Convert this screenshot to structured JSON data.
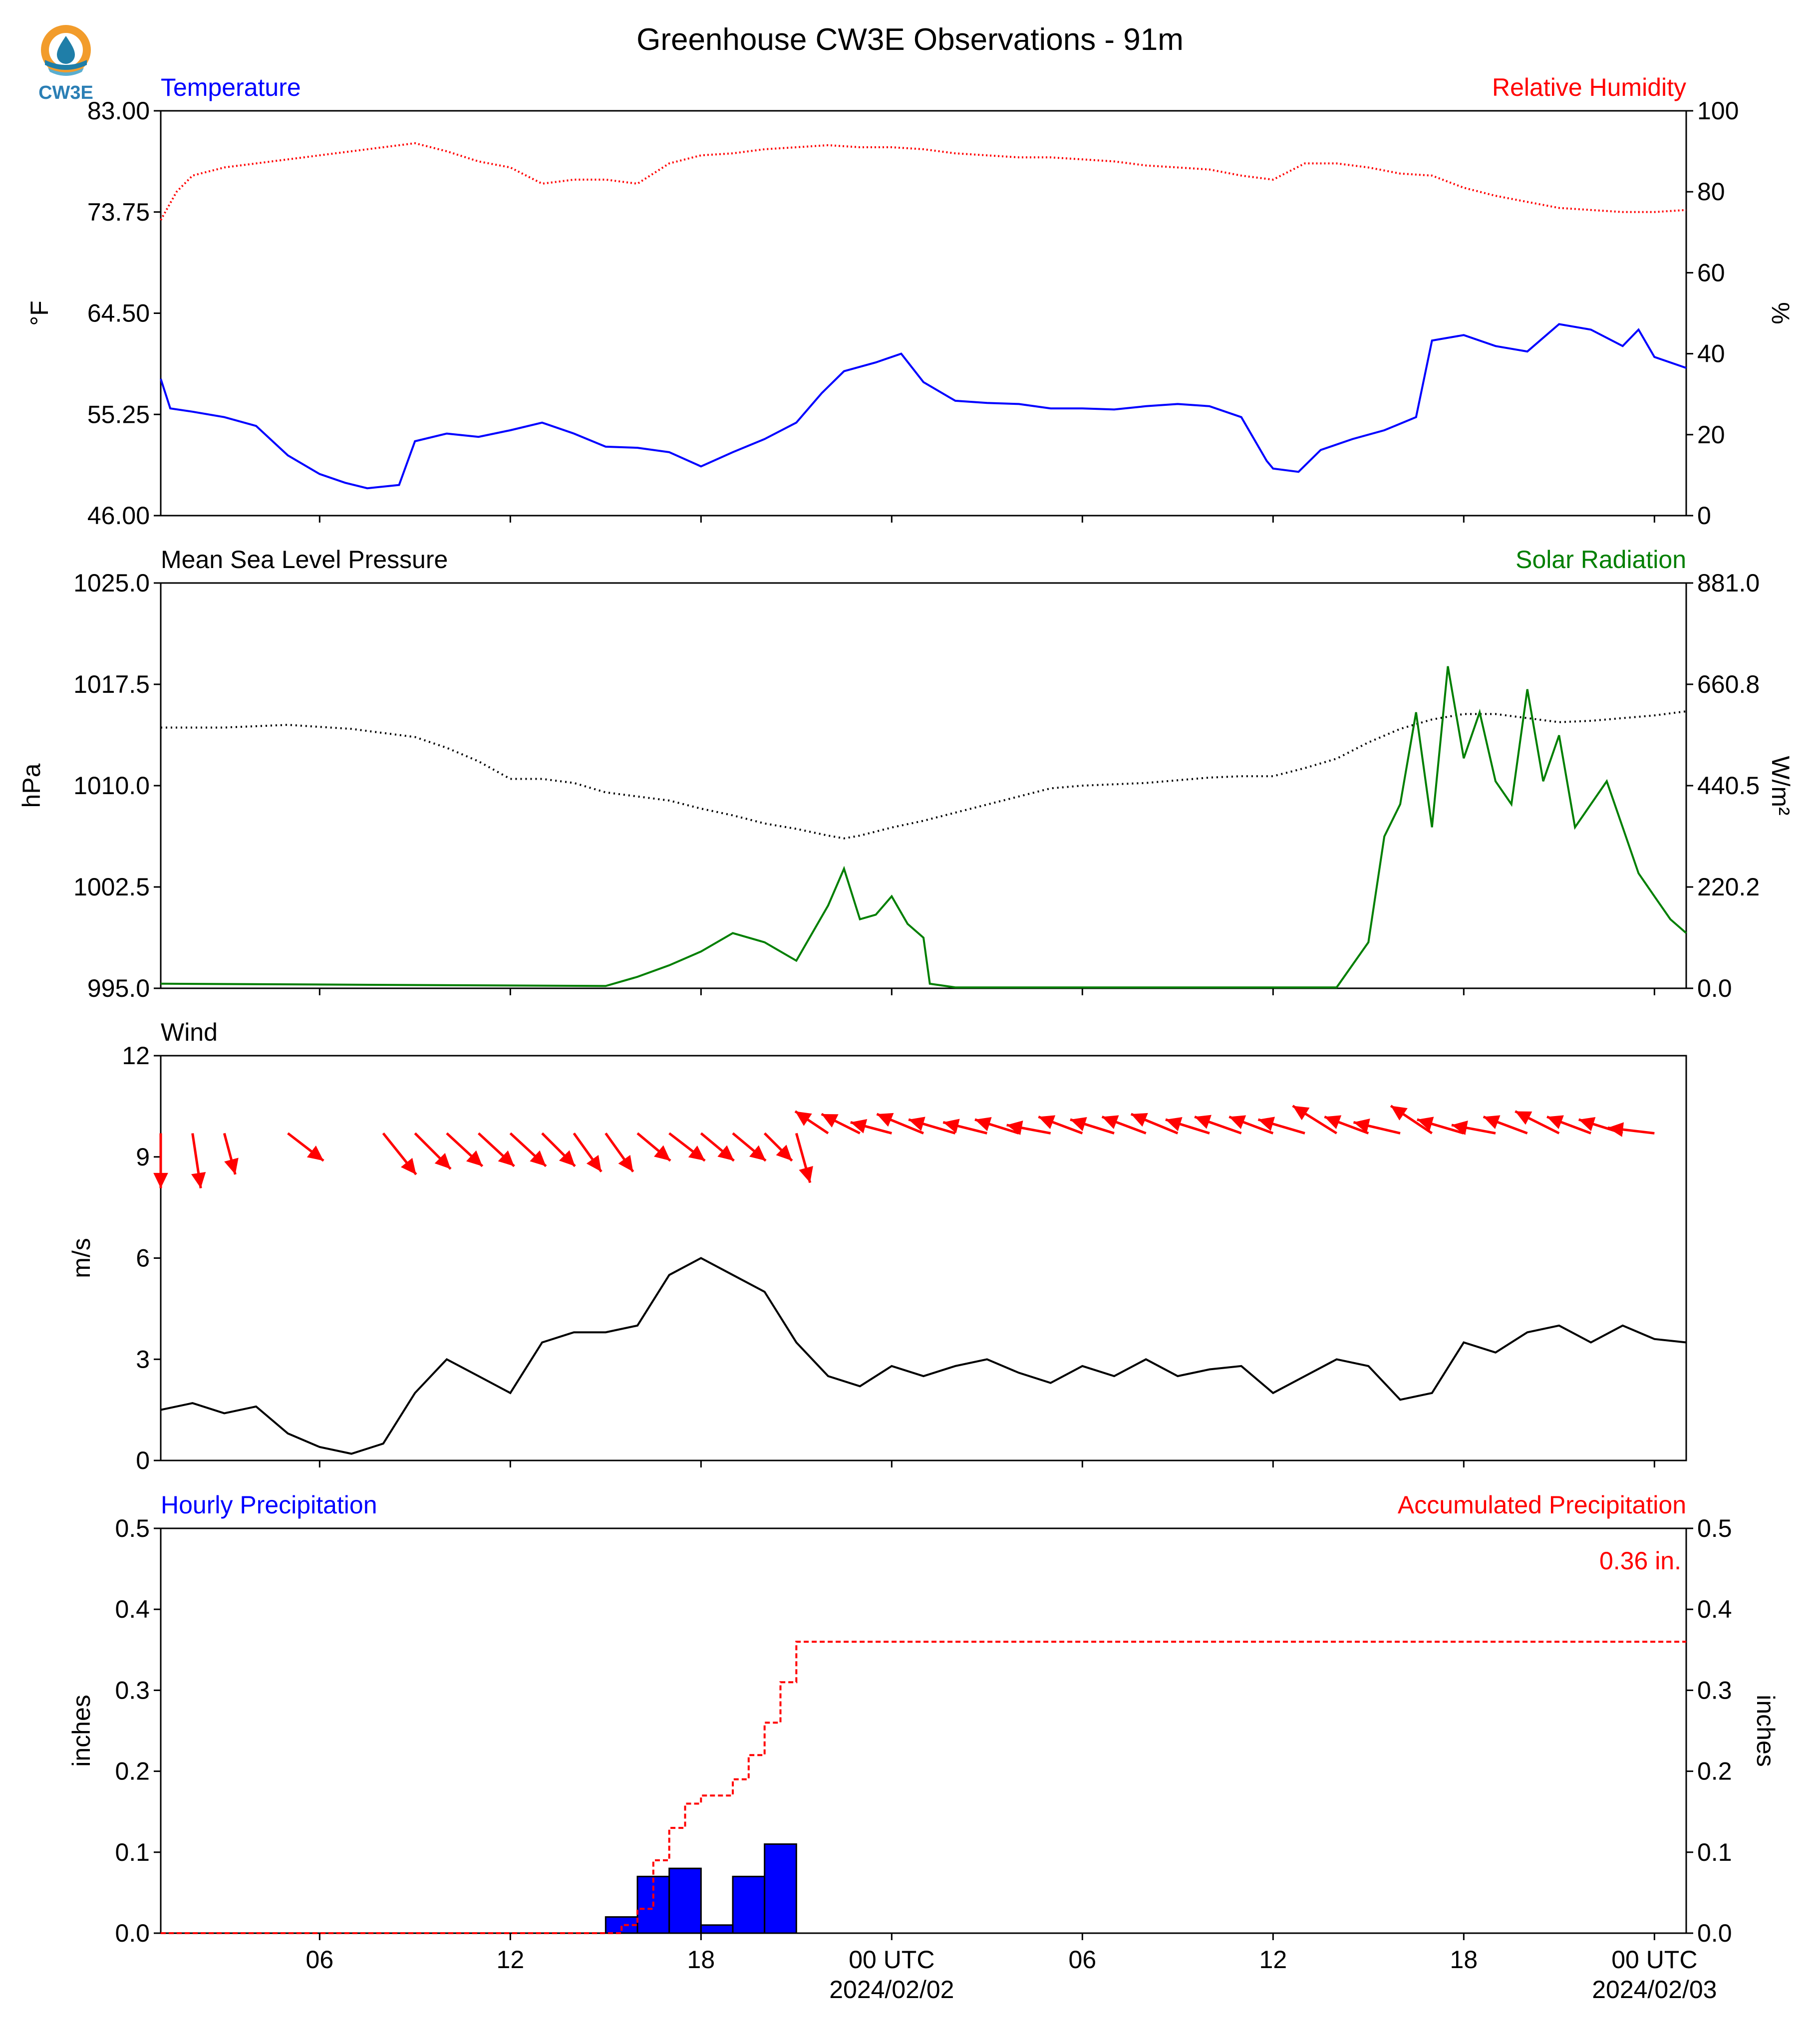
{
  "title": "Greenhouse CW3E Observations - 91m",
  "logo": {
    "text": "CW3E",
    "icon": "cw3e-drop-logo",
    "colors": {
      "ring": "#f29c2b",
      "drop": "#1f7ea8",
      "text": "#2b7fb5"
    }
  },
  "x_axis": {
    "tick_labels": [
      "06",
      "12",
      "18",
      "00 UTC",
      "06",
      "12",
      "18",
      "00 UTC"
    ],
    "date_labels": [
      "2024/02/02",
      "2024/02/03"
    ],
    "tick_hours": [
      6,
      12,
      18,
      24,
      30,
      36,
      42,
      48
    ],
    "range_hours": [
      1,
      49
    ]
  },
  "chart_data": [
    {
      "type": "line",
      "title": "",
      "left_label": "Temperature",
      "right_label": "Relative Humidity",
      "ylabel": "°F",
      "y2label": "%",
      "ylim": [
        46.0,
        83.0
      ],
      "y2lim": [
        0,
        100
      ],
      "yticks": [
        "46.00",
        "55.25",
        "64.50",
        "73.75",
        "83.00"
      ],
      "y2ticks": [
        "0",
        "20",
        "40",
        "60",
        "80",
        "100"
      ],
      "colors": {
        "left": "#0000ff",
        "right": "#ff0000"
      },
      "series": [
        {
          "name": "Temperature",
          "axis": "left",
          "color": "#0000ff",
          "x": [
            1,
            1.3,
            2,
            3,
            4,
            5,
            6,
            6.8,
            7.5,
            8.5,
            9,
            10,
            11,
            12,
            13,
            14,
            15,
            16,
            17,
            18,
            19,
            20,
            21,
            21.8,
            22.5,
            23.5,
            24.3,
            25,
            26,
            27,
            28,
            29,
            30,
            31,
            32,
            33,
            34,
            35,
            35.8,
            36,
            36.8,
            37.5,
            38.5,
            39.5,
            40.5,
            41,
            42,
            43,
            44,
            45,
            46,
            47,
            47.5,
            48,
            49
          ],
          "values": [
            58.5,
            55.8,
            55.5,
            55.0,
            54.2,
            51.5,
            49.8,
            49.0,
            48.5,
            48.8,
            52.8,
            53.5,
            53.2,
            53.8,
            54.5,
            53.5,
            52.3,
            52.2,
            51.8,
            50.5,
            51.8,
            53.0,
            54.5,
            57.2,
            59.2,
            60.0,
            60.8,
            58.2,
            56.5,
            56.3,
            56.2,
            55.8,
            55.8,
            55.7,
            56.0,
            56.2,
            56.0,
            55.0,
            51.0,
            50.3,
            50.0,
            52.0,
            53.0,
            53.8,
            55.0,
            62.0,
            62.5,
            61.5,
            61.0,
            63.5,
            63.0,
            61.5,
            63.0,
            60.5,
            59.5
          ]
        },
        {
          "name": "Relative Humidity",
          "axis": "right",
          "color": "#ff0000",
          "x": [
            1,
            1.5,
            2,
            3,
            4,
            5,
            6,
            7,
            8,
            9,
            10,
            11,
            12,
            13,
            14,
            15,
            16,
            17,
            18,
            19,
            20,
            21,
            22,
            23,
            24,
            25,
            26,
            27,
            28,
            29,
            30,
            31,
            32,
            33,
            34,
            35,
            36,
            37,
            38,
            39,
            40,
            41,
            42,
            43,
            44,
            45,
            46,
            47,
            48,
            49
          ],
          "values": [
            73,
            80,
            84,
            86,
            87,
            88,
            89,
            90,
            91,
            92,
            90,
            87.5,
            86,
            82,
            83,
            83,
            82,
            87,
            89,
            89.5,
            90.5,
            91,
            91.5,
            91,
            91,
            90.5,
            89.5,
            89,
            88.5,
            88.5,
            88,
            87.5,
            86.5,
            86,
            85.5,
            84,
            83,
            87,
            87,
            86,
            84.5,
            84,
            81,
            79,
            77.5,
            76,
            75.5,
            75,
            75,
            75.5
          ]
        }
      ]
    },
    {
      "type": "line",
      "title": "",
      "left_label": "Mean Sea Level Pressure",
      "right_label": "Solar Radiation",
      "ylabel": "hPa",
      "y2label": "W/m²",
      "ylim": [
        995.0,
        1025.0
      ],
      "y2lim": [
        0.0,
        881.0
      ],
      "yticks": [
        "995.0",
        "1002.5",
        "1010.0",
        "1017.5",
        "1025.0"
      ],
      "y2ticks": [
        "0.0",
        "220.2",
        "440.5",
        "660.8",
        "881.0"
      ],
      "colors": {
        "left": "#000000",
        "right": "#007f00"
      },
      "series": [
        {
          "name": "Mean Sea Level Pressure",
          "axis": "left",
          "color": "#000000",
          "x": [
            1,
            3,
            5,
            7,
            9,
            10,
            11,
            12,
            13,
            14,
            15,
            16,
            17,
            18,
            19,
            20,
            21,
            22,
            22.5,
            23,
            24,
            25,
            26,
            27,
            28,
            29,
            30,
            31,
            32,
            33,
            34,
            35,
            36,
            37,
            38,
            39,
            40,
            41,
            42,
            43,
            44,
            45,
            46,
            47,
            48,
            49
          ],
          "values": [
            1014.3,
            1014.3,
            1014.5,
            1014.2,
            1013.6,
            1012.8,
            1011.8,
            1010.5,
            1010.5,
            1010.2,
            1009.5,
            1009.2,
            1008.9,
            1008.3,
            1007.8,
            1007.2,
            1006.8,
            1006.3,
            1006.1,
            1006.3,
            1006.9,
            1007.4,
            1008.0,
            1008.6,
            1009.2,
            1009.8,
            1010.0,
            1010.1,
            1010.2,
            1010.4,
            1010.6,
            1010.7,
            1010.7,
            1011.3,
            1012.0,
            1013.2,
            1014.2,
            1014.9,
            1015.3,
            1015.3,
            1015.0,
            1014.7,
            1014.8,
            1015.0,
            1015.2,
            1015.5
          ]
        },
        {
          "name": "Solar Radiation",
          "axis": "right",
          "color": "#007f00",
          "x": [
            1,
            15,
            16,
            17,
            18,
            19,
            20,
            21,
            22,
            22.5,
            23,
            23.5,
            24,
            24.5,
            25,
            25.2,
            26,
            38,
            39,
            39.5,
            40,
            40.5,
            41,
            41.5,
            42,
            42.5,
            43,
            43.5,
            44,
            44.5,
            45,
            45.5,
            46,
            46.5,
            47,
            47.5,
            48,
            48.5,
            49
          ],
          "values": [
            10,
            5,
            25,
            50,
            80,
            120,
            100,
            60,
            180,
            260,
            150,
            160,
            200,
            140,
            110,
            10,
            2,
            2,
            100,
            330,
            400,
            600,
            350,
            700,
            500,
            600,
            450,
            400,
            650,
            450,
            550,
            350,
            400,
            450,
            350,
            250,
            200,
            150,
            120
          ]
        }
      ]
    },
    {
      "type": "line",
      "title": "",
      "left_label": "Wind",
      "ylabel": "m/s",
      "ylim": [
        0,
        12
      ],
      "yticks": [
        "0",
        "3",
        "6",
        "9",
        "12"
      ],
      "colors": {
        "speed": "#000000",
        "arrows": "#ff0000"
      },
      "series": [
        {
          "name": "Wind",
          "axis": "left",
          "color": "#000000",
          "x": [
            1,
            2,
            3,
            4,
            5,
            6,
            7,
            8,
            9,
            10,
            11,
            12,
            13,
            14,
            15,
            16,
            17,
            18,
            19,
            20,
            21,
            22,
            23,
            24,
            25,
            26,
            27,
            28,
            29,
            30,
            31,
            32,
            33,
            34,
            35,
            36,
            37,
            38,
            39,
            40,
            41,
            42,
            43,
            44,
            45,
            46,
            47,
            48,
            49
          ],
          "values": [
            1.5,
            1.7,
            1.4,
            1.6,
            0.8,
            0.4,
            0.2,
            0.5,
            2.0,
            3.0,
            2.5,
            2.0,
            3.5,
            3.8,
            3.8,
            4.0,
            5.5,
            6.0,
            5.5,
            5.0,
            3.5,
            2.5,
            2.2,
            2.8,
            2.5,
            2.8,
            3.0,
            2.6,
            2.3,
            2.8,
            2.5,
            3.0,
            2.5,
            2.7,
            2.8,
            2.0,
            2.5,
            3.0,
            2.8,
            1.8,
            2.0,
            3.5,
            3.2,
            3.8,
            4.0,
            3.5,
            4.0,
            3.6,
            3.5
          ]
        }
      ],
      "wind_vectors": {
        "y": 9.7,
        "x": [
          1,
          2,
          3,
          5,
          8,
          9,
          10,
          11,
          12,
          13,
          14,
          15,
          16,
          17,
          18,
          19,
          20,
          21,
          22,
          23,
          24,
          25,
          26,
          27,
          28,
          29,
          30,
          31,
          32,
          33,
          34,
          35,
          36,
          37,
          38,
          39,
          40,
          41,
          42,
          43,
          44,
          45,
          46,
          47,
          48
        ],
        "dx_vals": [
          0,
          0.3,
          0.4,
          1.3,
          1.2,
          1.3,
          1.3,
          1.3,
          1.3,
          1.2,
          1.0,
          1.0,
          1.2,
          1.3,
          1.2,
          1.2,
          1.0,
          0.5,
          -1.2,
          -1.4,
          -1.5,
          -1.7,
          -1.7,
          -1.6,
          -1.6,
          -1.6,
          -1.6,
          -1.6,
          -1.6,
          -1.7,
          -1.6,
          -1.7,
          -1.6,
          -1.7,
          -1.6,
          -1.6,
          -1.7,
          -1.5,
          -1.7,
          -1.6,
          -1.6,
          -1.6,
          -1.6,
          -1.6,
          -1.7
        ],
        "dy_vals": [
          -2.0,
          -2.0,
          -1.5,
          -1.0,
          -1.5,
          -1.3,
          -1.2,
          -1.2,
          -1.2,
          -1.2,
          -1.4,
          -1.4,
          -1.0,
          -1.0,
          -1.0,
          -1.0,
          -1.0,
          -1.8,
          0.8,
          0.7,
          0.4,
          0.7,
          0.5,
          0.4,
          0.5,
          0.3,
          0.6,
          0.5,
          0.6,
          0.7,
          0.5,
          0.6,
          0.6,
          0.5,
          1.0,
          0.6,
          0.4,
          1.0,
          0.5,
          0.3,
          0.6,
          0.8,
          0.6,
          0.5,
          0.2
        ]
      }
    },
    {
      "type": "bar",
      "title": "",
      "left_label": "Hourly Precipitation",
      "right_label": "Accumulated Precipitation",
      "ylabel": "inches",
      "y2label": "inches",
      "ylim": [
        0.0,
        0.5
      ],
      "y2lim": [
        0.0,
        0.5
      ],
      "yticks": [
        "0.0",
        "0.1",
        "0.2",
        "0.3",
        "0.4",
        "0.5"
      ],
      "y2ticks": [
        "0.0",
        "0.1",
        "0.2",
        "0.3",
        "0.4",
        "0.5"
      ],
      "annotation": "0.36 in.",
      "colors": {
        "bars": "#0000ff",
        "accum": "#ff0000"
      },
      "series": [
        {
          "name": "Hourly Precipitation",
          "axis": "left",
          "color": "#0000ff",
          "x": [
            15,
            16,
            17,
            18,
            19,
            20
          ],
          "values": [
            0.02,
            0.07,
            0.08,
            0.01,
            0.07,
            0.11
          ]
        },
        {
          "name": "Accumulated Precipitation",
          "axis": "right",
          "color": "#ff0000",
          "x": [
            1,
            15,
            15.5,
            16,
            16.5,
            17,
            17.5,
            18,
            18.5,
            19,
            19.5,
            20,
            20.5,
            21,
            21.5,
            22,
            49
          ],
          "values": [
            0.0,
            0.0,
            0.01,
            0.03,
            0.09,
            0.13,
            0.16,
            0.17,
            0.17,
            0.19,
            0.22,
            0.26,
            0.31,
            0.36,
            0.36,
            0.36,
            0.36
          ]
        }
      ]
    }
  ]
}
